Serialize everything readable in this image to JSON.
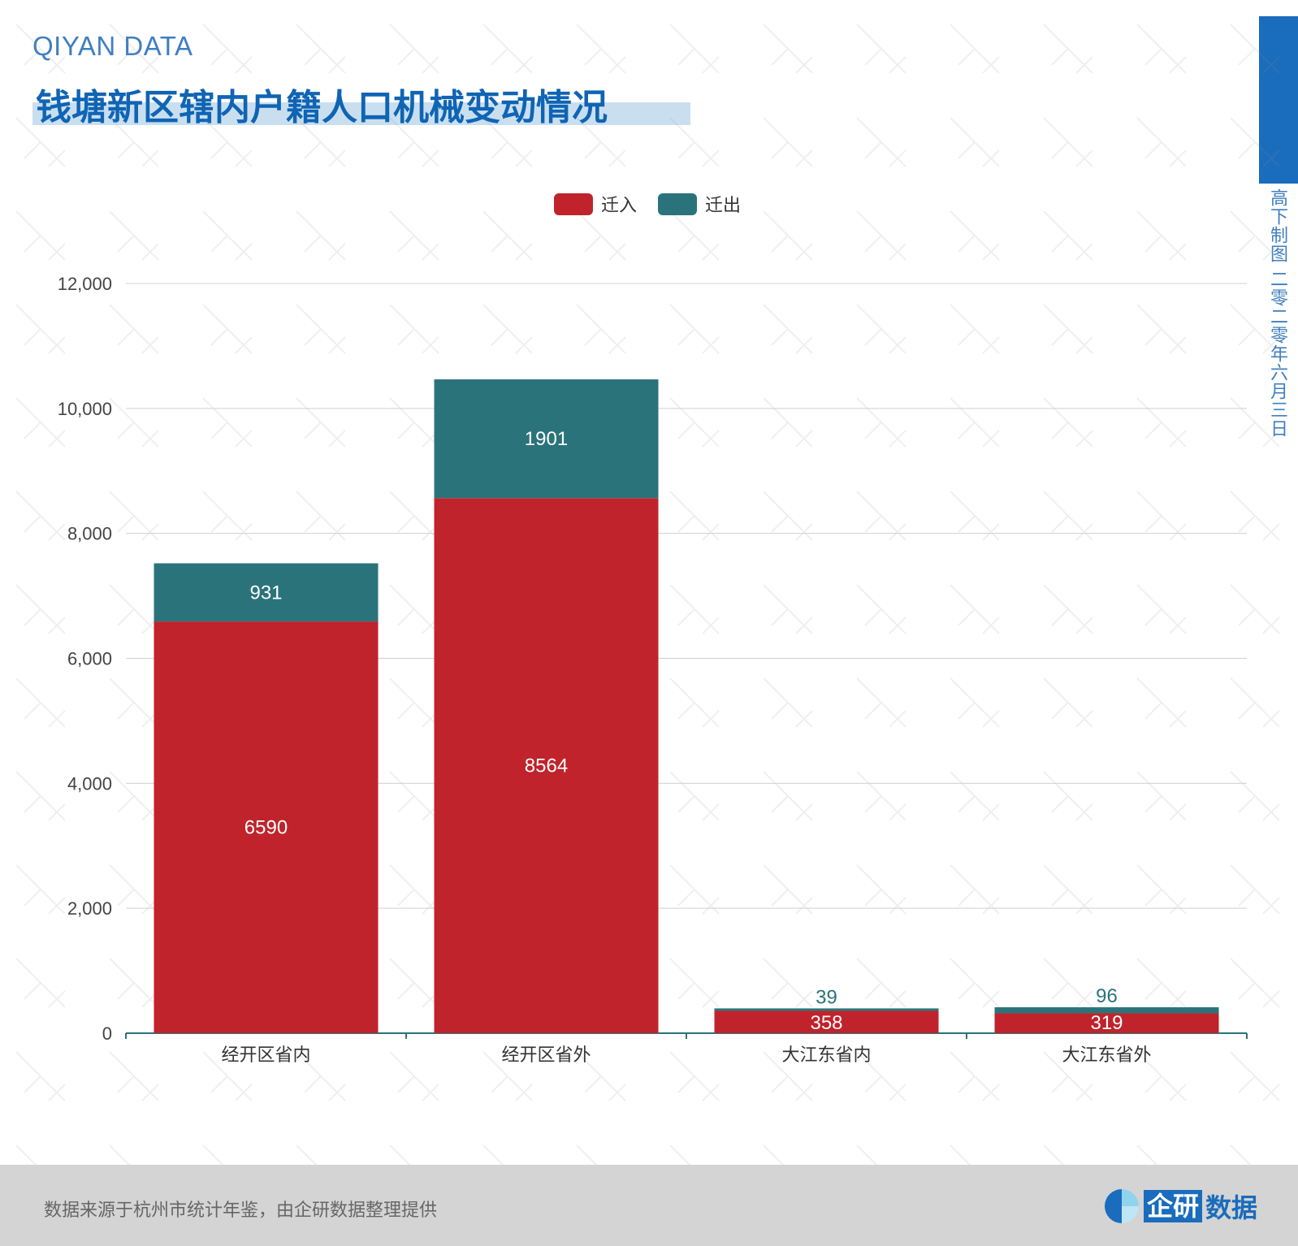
{
  "header": {
    "brand": "QIYAN DATA",
    "title": "钱塘新区辖内户籍人口机械变动情况"
  },
  "side": {
    "text": "高下制图 二零二零年六月三日"
  },
  "footer": {
    "source": "数据来源于杭州市统计年鉴，由企研数据整理提供",
    "logo_a": "企研",
    "logo_b": "数据"
  },
  "chart_data": {
    "type": "bar",
    "stacked": true,
    "title": "钱塘新区辖内户籍人口机械变动情况",
    "categories": [
      "经开区省内",
      "经开区省外",
      "大江东省内",
      "大江东省外"
    ],
    "series": [
      {
        "name": "迁入",
        "color": "#c0232b",
        "values": [
          6590,
          8564,
          358,
          319
        ]
      },
      {
        "name": "迁出",
        "color": "#2b737a",
        "values": [
          931,
          1901,
          39,
          96
        ]
      }
    ],
    "yticks": [
      "0",
      "2,000",
      "4,000",
      "6,000",
      "8,000",
      "10,000",
      "12,000"
    ],
    "ylim": [
      0,
      12000
    ],
    "grid": true,
    "legend": "top-center"
  }
}
